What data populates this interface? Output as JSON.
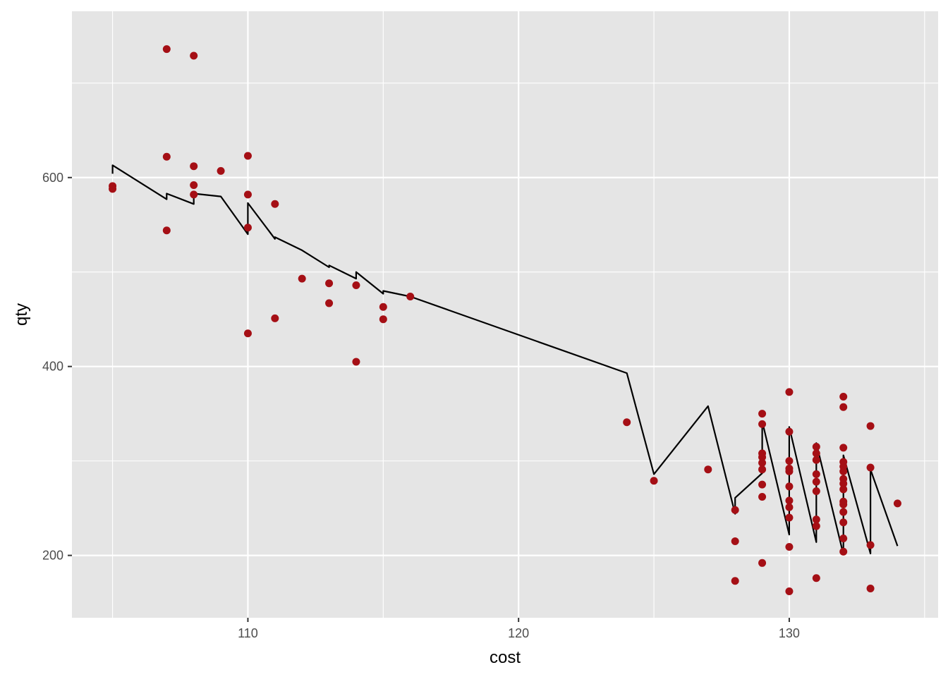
{
  "chart_data": {
    "type": "scatter",
    "xlabel": "cost",
    "ylabel": "qty",
    "xlim": [
      103.5,
      135.5
    ],
    "ylim": [
      134,
      776
    ],
    "x_major_ticks": [
      110,
      120,
      130
    ],
    "x_minor_ticks": [
      105,
      115,
      125,
      135
    ],
    "y_major_ticks": [
      200,
      400,
      600
    ],
    "y_minor_ticks": [
      300,
      500,
      700
    ],
    "grid": true,
    "colors": {
      "panel_background": "#e5e5e5",
      "grid": "#ffffff",
      "points": "#a50f15",
      "line": "#000000"
    },
    "points": [
      {
        "x": 105,
        "y": 591
      },
      {
        "x": 105,
        "y": 588
      },
      {
        "x": 107,
        "y": 736
      },
      {
        "x": 107,
        "y": 622
      },
      {
        "x": 107,
        "y": 544
      },
      {
        "x": 108,
        "y": 729
      },
      {
        "x": 108,
        "y": 612
      },
      {
        "x": 108,
        "y": 592
      },
      {
        "x": 108,
        "y": 582
      },
      {
        "x": 109,
        "y": 607
      },
      {
        "x": 110,
        "y": 623
      },
      {
        "x": 110,
        "y": 582
      },
      {
        "x": 110,
        "y": 547
      },
      {
        "x": 110,
        "y": 435
      },
      {
        "x": 111,
        "y": 572
      },
      {
        "x": 111,
        "y": 451
      },
      {
        "x": 112,
        "y": 493
      },
      {
        "x": 113,
        "y": 488
      },
      {
        "x": 113,
        "y": 467
      },
      {
        "x": 114,
        "y": 486
      },
      {
        "x": 114,
        "y": 405
      },
      {
        "x": 115,
        "y": 463
      },
      {
        "x": 115,
        "y": 450
      },
      {
        "x": 116,
        "y": 474
      },
      {
        "x": 124,
        "y": 341
      },
      {
        "x": 125,
        "y": 279
      },
      {
        "x": 127,
        "y": 291
      },
      {
        "x": 128,
        "y": 248
      },
      {
        "x": 128,
        "y": 215
      },
      {
        "x": 128,
        "y": 173
      },
      {
        "x": 129,
        "y": 350
      },
      {
        "x": 129,
        "y": 339
      },
      {
        "x": 129,
        "y": 308
      },
      {
        "x": 129,
        "y": 304
      },
      {
        "x": 129,
        "y": 298
      },
      {
        "x": 129,
        "y": 291
      },
      {
        "x": 129,
        "y": 275
      },
      {
        "x": 129,
        "y": 262
      },
      {
        "x": 129,
        "y": 192
      },
      {
        "x": 130,
        "y": 373
      },
      {
        "x": 130,
        "y": 331
      },
      {
        "x": 130,
        "y": 300
      },
      {
        "x": 130,
        "y": 292
      },
      {
        "x": 130,
        "y": 289
      },
      {
        "x": 130,
        "y": 273
      },
      {
        "x": 130,
        "y": 258
      },
      {
        "x": 130,
        "y": 251
      },
      {
        "x": 130,
        "y": 240
      },
      {
        "x": 130,
        "y": 209
      },
      {
        "x": 130,
        "y": 162
      },
      {
        "x": 131,
        "y": 315
      },
      {
        "x": 131,
        "y": 308
      },
      {
        "x": 131,
        "y": 301
      },
      {
        "x": 131,
        "y": 286
      },
      {
        "x": 131,
        "y": 278
      },
      {
        "x": 131,
        "y": 268
      },
      {
        "x": 131,
        "y": 238
      },
      {
        "x": 131,
        "y": 231
      },
      {
        "x": 131,
        "y": 176
      },
      {
        "x": 132,
        "y": 368
      },
      {
        "x": 132,
        "y": 357
      },
      {
        "x": 132,
        "y": 314
      },
      {
        "x": 132,
        "y": 299
      },
      {
        "x": 132,
        "y": 294
      },
      {
        "x": 132,
        "y": 289
      },
      {
        "x": 132,
        "y": 281
      },
      {
        "x": 132,
        "y": 276
      },
      {
        "x": 132,
        "y": 270
      },
      {
        "x": 132,
        "y": 257
      },
      {
        "x": 132,
        "y": 254
      },
      {
        "x": 132,
        "y": 246
      },
      {
        "x": 132,
        "y": 235
      },
      {
        "x": 132,
        "y": 218
      },
      {
        "x": 132,
        "y": 204
      },
      {
        "x": 133,
        "y": 337
      },
      {
        "x": 133,
        "y": 293
      },
      {
        "x": 133,
        "y": 211
      },
      {
        "x": 133,
        "y": 165
      },
      {
        "x": 134,
        "y": 255
      }
    ],
    "line": [
      {
        "x": 105,
        "y": 604
      },
      {
        "x": 105,
        "y": 613
      },
      {
        "x": 107,
        "y": 577
      },
      {
        "x": 107,
        "y": 583
      },
      {
        "x": 108,
        "y": 572
      },
      {
        "x": 108,
        "y": 583
      },
      {
        "x": 109,
        "y": 580
      },
      {
        "x": 110,
        "y": 540
      },
      {
        "x": 110,
        "y": 573
      },
      {
        "x": 111,
        "y": 535
      },
      {
        "x": 111,
        "y": 537
      },
      {
        "x": 112,
        "y": 523
      },
      {
        "x": 113,
        "y": 505
      },
      {
        "x": 113,
        "y": 507
      },
      {
        "x": 114,
        "y": 493
      },
      {
        "x": 114,
        "y": 500
      },
      {
        "x": 115,
        "y": 477
      },
      {
        "x": 115,
        "y": 480
      },
      {
        "x": 116,
        "y": 474
      },
      {
        "x": 124,
        "y": 393
      },
      {
        "x": 125,
        "y": 286
      },
      {
        "x": 127,
        "y": 358
      },
      {
        "x": 128,
        "y": 244
      },
      {
        "x": 128,
        "y": 261
      },
      {
        "x": 129,
        "y": 287
      },
      {
        "x": 129,
        "y": 342
      },
      {
        "x": 130,
        "y": 222
      },
      {
        "x": 130,
        "y": 336
      },
      {
        "x": 131,
        "y": 214
      },
      {
        "x": 131,
        "y": 319
      },
      {
        "x": 132,
        "y": 201
      },
      {
        "x": 132,
        "y": 306
      },
      {
        "x": 133,
        "y": 202
      },
      {
        "x": 133,
        "y": 291
      },
      {
        "x": 134,
        "y": 210
      }
    ]
  }
}
